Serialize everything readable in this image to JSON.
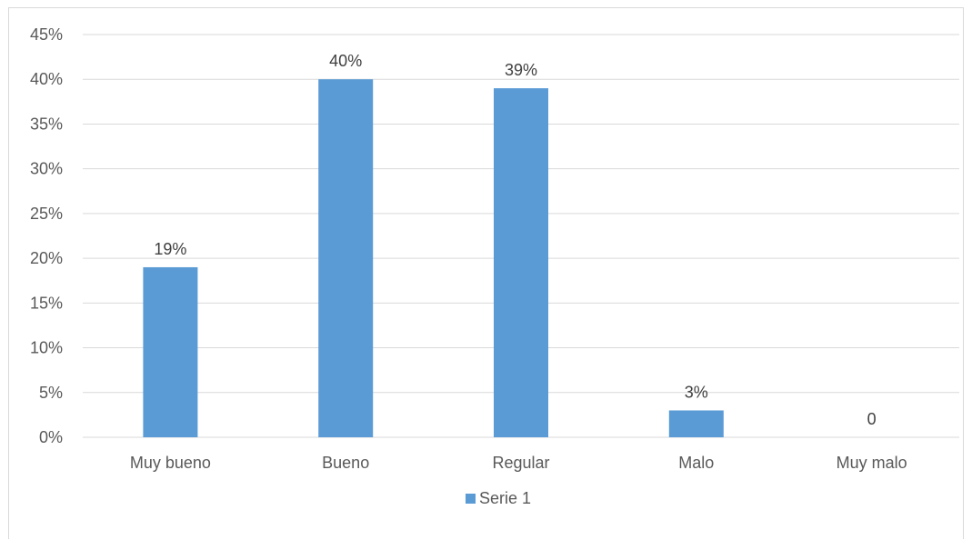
{
  "chart_data": {
    "type": "bar",
    "categories": [
      "Muy bueno",
      "Bueno",
      "Regular",
      "Malo",
      "Muy malo"
    ],
    "series": [
      {
        "name": "Serie 1",
        "values": [
          19,
          40,
          39,
          3,
          0
        ],
        "data_labels": [
          "19%",
          "40%",
          "39%",
          "3%",
          "0"
        ],
        "color": "#5b9bd5"
      }
    ],
    "ylim": [
      0,
      45
    ],
    "y_ticks": [
      0,
      5,
      10,
      15,
      20,
      25,
      30,
      35,
      40,
      45
    ],
    "y_tick_labels": [
      "0%",
      "5%",
      "10%",
      "15%",
      "20%",
      "25%",
      "30%",
      "35%",
      "40%",
      "45%"
    ],
    "title": "",
    "xlabel": "",
    "ylabel": "",
    "grid": true,
    "legend": {
      "position": "bottom",
      "entries": [
        "Serie 1"
      ]
    },
    "colors": {
      "bar": "#5b9bd5",
      "grid": "#d9d9d9",
      "axis_text": "#595959",
      "label_text": "#404040"
    }
  }
}
